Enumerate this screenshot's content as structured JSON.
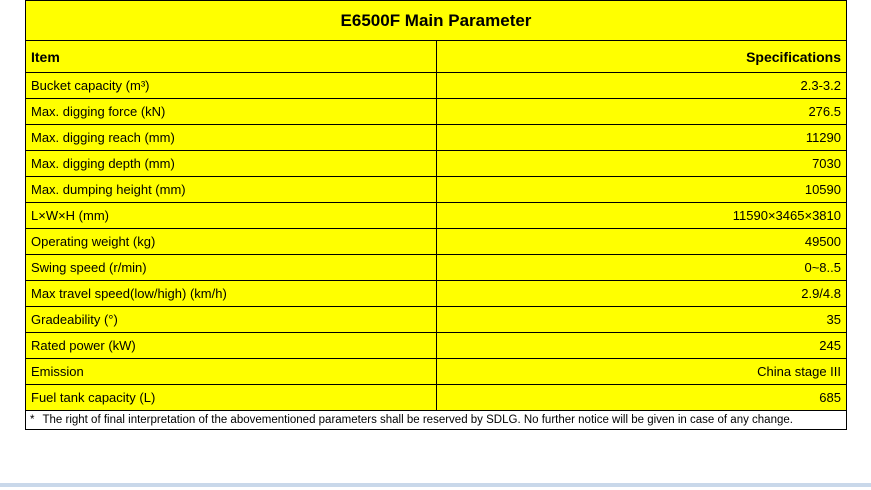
{
  "title": "E6500F Main Parameter",
  "columns": {
    "item": "Item",
    "spec": "Specifications"
  },
  "rows": [
    {
      "item": "Bucket capacity (m³)",
      "value": "2.3-3.2"
    },
    {
      "item": "Max. digging force (kN)",
      "value": "276.5"
    },
    {
      "item": "Max. digging reach (mm)",
      "value": "11290"
    },
    {
      "item": "Max. digging depth (mm)",
      "value": "7030"
    },
    {
      "item": "Max. dumping height (mm)",
      "value": "10590"
    },
    {
      "item": "L×W×H (mm)",
      "value": "11590×3465×3810"
    },
    {
      "item": "Operating weight (kg)",
      "value": "49500"
    },
    {
      "item": "Swing speed (r/min)",
      "value": "0~8..5"
    },
    {
      "item": "Max travel speed(low/high) (km/h)",
      "value": "2.9/4.8"
    },
    {
      "item": "Gradeability (°)",
      "value": "35"
    },
    {
      "item": "Rated power (kW)",
      "value": "245"
    },
    {
      "item": "Emission",
      "value": "China stage III"
    },
    {
      "item": "Fuel tank capacity (L)",
      "value": "685"
    }
  ],
  "footnote": {
    "marker": "*",
    "text": "The right of final interpretation of the abovementioned parameters shall be reserved by SDLG. No further notice will be given in case of any change."
  },
  "colors": {
    "cell_yellow": "#ffff00",
    "border_black": "#000000",
    "bottom_strip": "#c9d8ea"
  }
}
